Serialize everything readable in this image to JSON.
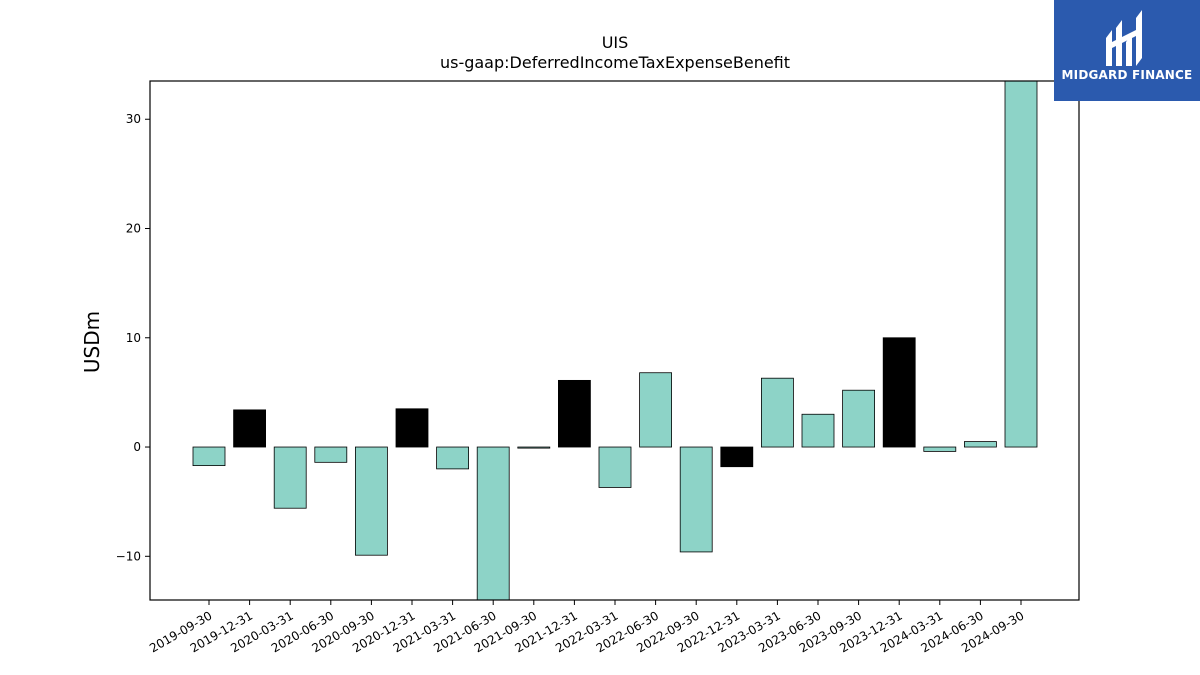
{
  "chart_data": {
    "type": "bar",
    "title": "UIS",
    "subtitle": "us-gaap:DeferredIncomeTaxExpenseBenefit",
    "ylabel": "USDm",
    "xlabel": "",
    "ylim": [
      -14,
      33.5
    ],
    "yticks": [
      -10,
      0,
      10,
      20,
      30
    ],
    "grid": false,
    "categories": [
      "2019-09-30",
      "2019-12-31",
      "2020-03-31",
      "2020-06-30",
      "2020-09-30",
      "2020-12-31",
      "2021-03-31",
      "2021-06-30",
      "2021-09-30",
      "2021-12-31",
      "2022-03-31",
      "2022-06-30",
      "2022-09-30",
      "2022-12-31",
      "2023-03-31",
      "2023-06-30",
      "2023-09-30",
      "2023-12-31",
      "2024-03-31",
      "2024-06-30",
      "2024-09-30"
    ],
    "values": [
      -1.7,
      3.4,
      -5.6,
      -1.4,
      -9.9,
      3.5,
      -2.0,
      -14.0,
      -0.1,
      6.1,
      -3.7,
      6.8,
      -9.6,
      -1.8,
      6.3,
      3.0,
      5.2,
      10.0,
      -0.4,
      0.5,
      33.5
    ],
    "highlight_quarter_end": "12-31",
    "colors": {
      "normal": "#8dd3c7",
      "highlight": "#000000",
      "edge": "#000000"
    }
  },
  "branding": {
    "logo_text": "MIDGARD FINANCE",
    "logo_color": "#2b5aae"
  }
}
